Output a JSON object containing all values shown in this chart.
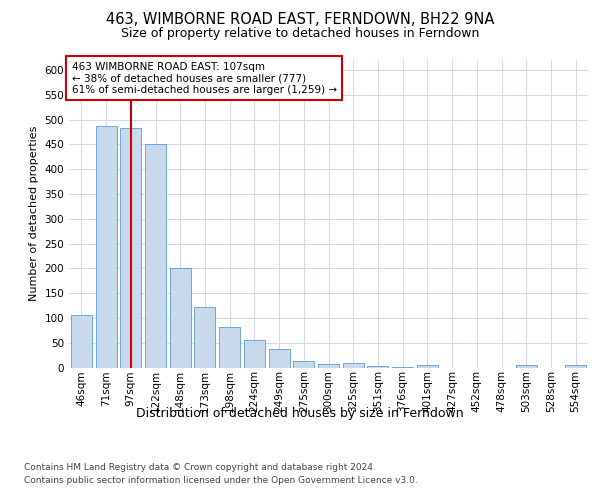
{
  "title": "463, WIMBORNE ROAD EAST, FERNDOWN, BH22 9NA",
  "subtitle": "Size of property relative to detached houses in Ferndown",
  "xlabel": "Distribution of detached houses by size in Ferndown",
  "ylabel": "Number of detached properties",
  "footnote1": "Contains HM Land Registry data © Crown copyright and database right 2024.",
  "footnote2": "Contains public sector information licensed under the Open Government Licence v3.0.",
  "annotation_line1": "463 WIMBORNE ROAD EAST: 107sqm",
  "annotation_line2": "← 38% of detached houses are smaller (777)",
  "annotation_line3": "61% of semi-detached houses are larger (1,259) →",
  "bar_labels": [
    "46sqm",
    "71sqm",
    "97sqm",
    "122sqm",
    "148sqm",
    "173sqm",
    "198sqm",
    "224sqm",
    "249sqm",
    "275sqm",
    "300sqm",
    "325sqm",
    "351sqm",
    "376sqm",
    "401sqm",
    "427sqm",
    "452sqm",
    "478sqm",
    "503sqm",
    "528sqm",
    "554sqm"
  ],
  "bar_values": [
    105,
    487,
    483,
    450,
    200,
    122,
    82,
    55,
    37,
    14,
    8,
    10,
    3,
    2,
    5,
    0,
    0,
    0,
    5,
    0,
    5
  ],
  "bar_color": "#c9d9ec",
  "bar_edge_color": "#5b9bd5",
  "grid_color": "#d0d8e8",
  "property_bin_index": 2,
  "red_line_color": "#cc0000",
  "annotation_box_color": "#cc0000",
  "ylim": [
    0,
    620
  ],
  "title_fontsize": 10.5,
  "subtitle_fontsize": 9,
  "xlabel_fontsize": 9,
  "ylabel_fontsize": 8,
  "tick_fontsize": 7.5,
  "annotation_fontsize": 7.5,
  "footnote_fontsize": 6.5
}
